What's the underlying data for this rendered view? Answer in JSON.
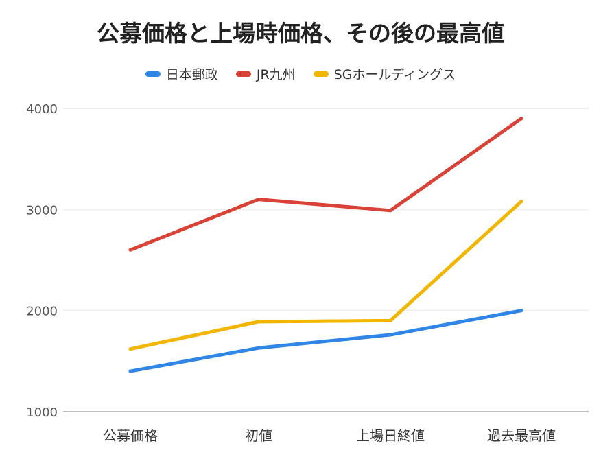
{
  "chart_data": {
    "type": "line",
    "title": "公募価格と上場時価格、その後の最高値",
    "categories": [
      "公募価格",
      "初値",
      "上場日終値",
      "過去最高値"
    ],
    "y_ticks": [
      1000,
      2000,
      3000,
      4000
    ],
    "ylim": [
      1000,
      4000
    ],
    "legend_position": "top-center",
    "grid": true,
    "series": [
      {
        "name": "日本郵政",
        "color": "#2f86e6",
        "values": [
          1400,
          1630,
          1760,
          2000
        ]
      },
      {
        "name": "JR九州",
        "color": "#d94236",
        "values": [
          2600,
          3100,
          2990,
          3900
        ]
      },
      {
        "name": "SGホールディングス",
        "color": "#f2b500",
        "values": [
          1620,
          1890,
          1900,
          3080
        ]
      }
    ]
  }
}
